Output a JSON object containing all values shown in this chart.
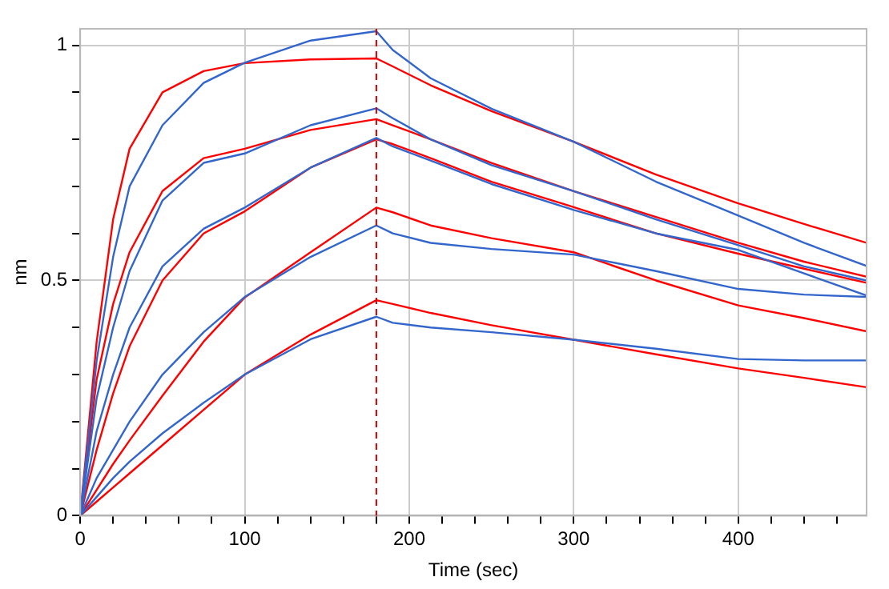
{
  "chart_data": {
    "type": "line",
    "xlabel": "Time (sec)",
    "ylabel": "nm",
    "x": [
      0,
      10,
      20,
      30,
      50,
      75,
      100,
      140,
      180,
      190,
      213,
      250,
      300,
      350,
      400,
      440,
      478
    ],
    "series": [
      {
        "color": "#3366cc",
        "values": [
          0,
          0.33,
          0.55,
          0.7,
          0.83,
          0.92,
          0.963,
          1.01,
          1.03,
          0.99,
          0.93,
          0.865,
          0.795,
          0.71,
          0.638,
          0.58,
          0.531
        ]
      },
      {
        "color": "#3366cc",
        "values": [
          0,
          0.25,
          0.4,
          0.52,
          0.67,
          0.75,
          0.77,
          0.83,
          0.866,
          0.845,
          0.8,
          0.745,
          0.69,
          0.63,
          0.575,
          0.53,
          0.5
        ]
      },
      {
        "color": "#3366cc",
        "values": [
          0,
          0.18,
          0.3,
          0.4,
          0.53,
          0.61,
          0.655,
          0.74,
          0.803,
          0.785,
          0.755,
          0.705,
          0.65,
          0.6,
          0.565,
          0.515,
          0.468
        ]
      },
      {
        "color": "#3366cc",
        "values": [
          0,
          0.08,
          0.14,
          0.2,
          0.3,
          0.39,
          0.465,
          0.55,
          0.617,
          0.6,
          0.58,
          0.567,
          0.555,
          0.52,
          0.482,
          0.47,
          0.465
        ]
      },
      {
        "color": "#3366cc",
        "values": [
          0,
          0.04,
          0.08,
          0.115,
          0.175,
          0.24,
          0.3,
          0.375,
          0.423,
          0.41,
          0.4,
          0.39,
          0.374,
          0.355,
          0.333,
          0.33,
          0.33
        ]
      },
      {
        "color": "#ff0000",
        "values": [
          0,
          0.37,
          0.63,
          0.78,
          0.9,
          0.945,
          0.962,
          0.97,
          0.972,
          0.955,
          0.915,
          0.86,
          0.795,
          0.725,
          0.664,
          0.62,
          0.58
        ]
      },
      {
        "color": "#ff0000",
        "values": [
          0,
          0.29,
          0.45,
          0.56,
          0.69,
          0.76,
          0.78,
          0.82,
          0.843,
          0.83,
          0.8,
          0.75,
          0.69,
          0.635,
          0.58,
          0.54,
          0.508
        ]
      },
      {
        "color": "#ff0000",
        "values": [
          0,
          0.14,
          0.26,
          0.36,
          0.5,
          0.6,
          0.647,
          0.74,
          0.8,
          0.79,
          0.76,
          0.71,
          0.656,
          0.6,
          0.557,
          0.525,
          0.495
        ]
      },
      {
        "color": "#ff0000",
        "values": [
          0,
          0.055,
          0.11,
          0.16,
          0.255,
          0.37,
          0.464,
          0.56,
          0.655,
          0.645,
          0.617,
          0.59,
          0.56,
          0.5,
          0.447,
          0.42,
          0.392
        ]
      },
      {
        "color": "#ff0000",
        "values": [
          0,
          0.03,
          0.06,
          0.09,
          0.15,
          0.225,
          0.3,
          0.385,
          0.458,
          0.45,
          0.431,
          0.405,
          0.374,
          0.343,
          0.313,
          0.293,
          0.273
        ]
      }
    ],
    "xlim": [
      0,
      478
    ],
    "xticks": [
      0,
      {
        "value": 20,
        "label": null
      },
      {
        "value": 40,
        "label": null
      },
      {
        "value": 60,
        "label": null
      },
      {
        "value": 80,
        "label": null
      },
      100,
      {
        "value": 120,
        "label": null
      },
      {
        "value": 140,
        "label": null
      },
      {
        "value": 160,
        "label": null
      },
      {
        "value": 180,
        "label": null
      },
      200,
      {
        "value": 220,
        "label": null
      },
      {
        "value": 240,
        "label": null
      },
      {
        "value": 260,
        "label": null
      },
      {
        "value": 280,
        "label": null
      },
      300,
      {
        "value": 320,
        "label": null
      },
      {
        "value": 340,
        "label": null
      },
      {
        "value": 360,
        "label": null
      },
      {
        "value": 380,
        "label": null
      },
      400,
      {
        "value": 420,
        "label": null
      },
      {
        "value": 440,
        "label": null
      },
      {
        "value": 460,
        "label": null
      }
    ],
    "ylim": [
      0,
      1.035
    ],
    "yticks": [
      0,
      {
        "value": 0.1,
        "label": null
      },
      {
        "value": 0.2,
        "label": null
      },
      {
        "value": 0.3,
        "label": null
      },
      {
        "value": 0.4,
        "label": null
      },
      0.5,
      {
        "value": 0.6,
        "label": null
      },
      {
        "value": 0.7,
        "label": null
      },
      {
        "value": 0.8,
        "label": null
      },
      {
        "value": 0.9,
        "label": null
      },
      1
    ],
    "ref_lines": [
      {
        "axis": "x",
        "value": 180,
        "label": null,
        "color": "#cc0000",
        "line_style": "dashed"
      }
    ],
    "grid": true,
    "legend": false,
    "marker": "none",
    "line_style": "solid"
  }
}
